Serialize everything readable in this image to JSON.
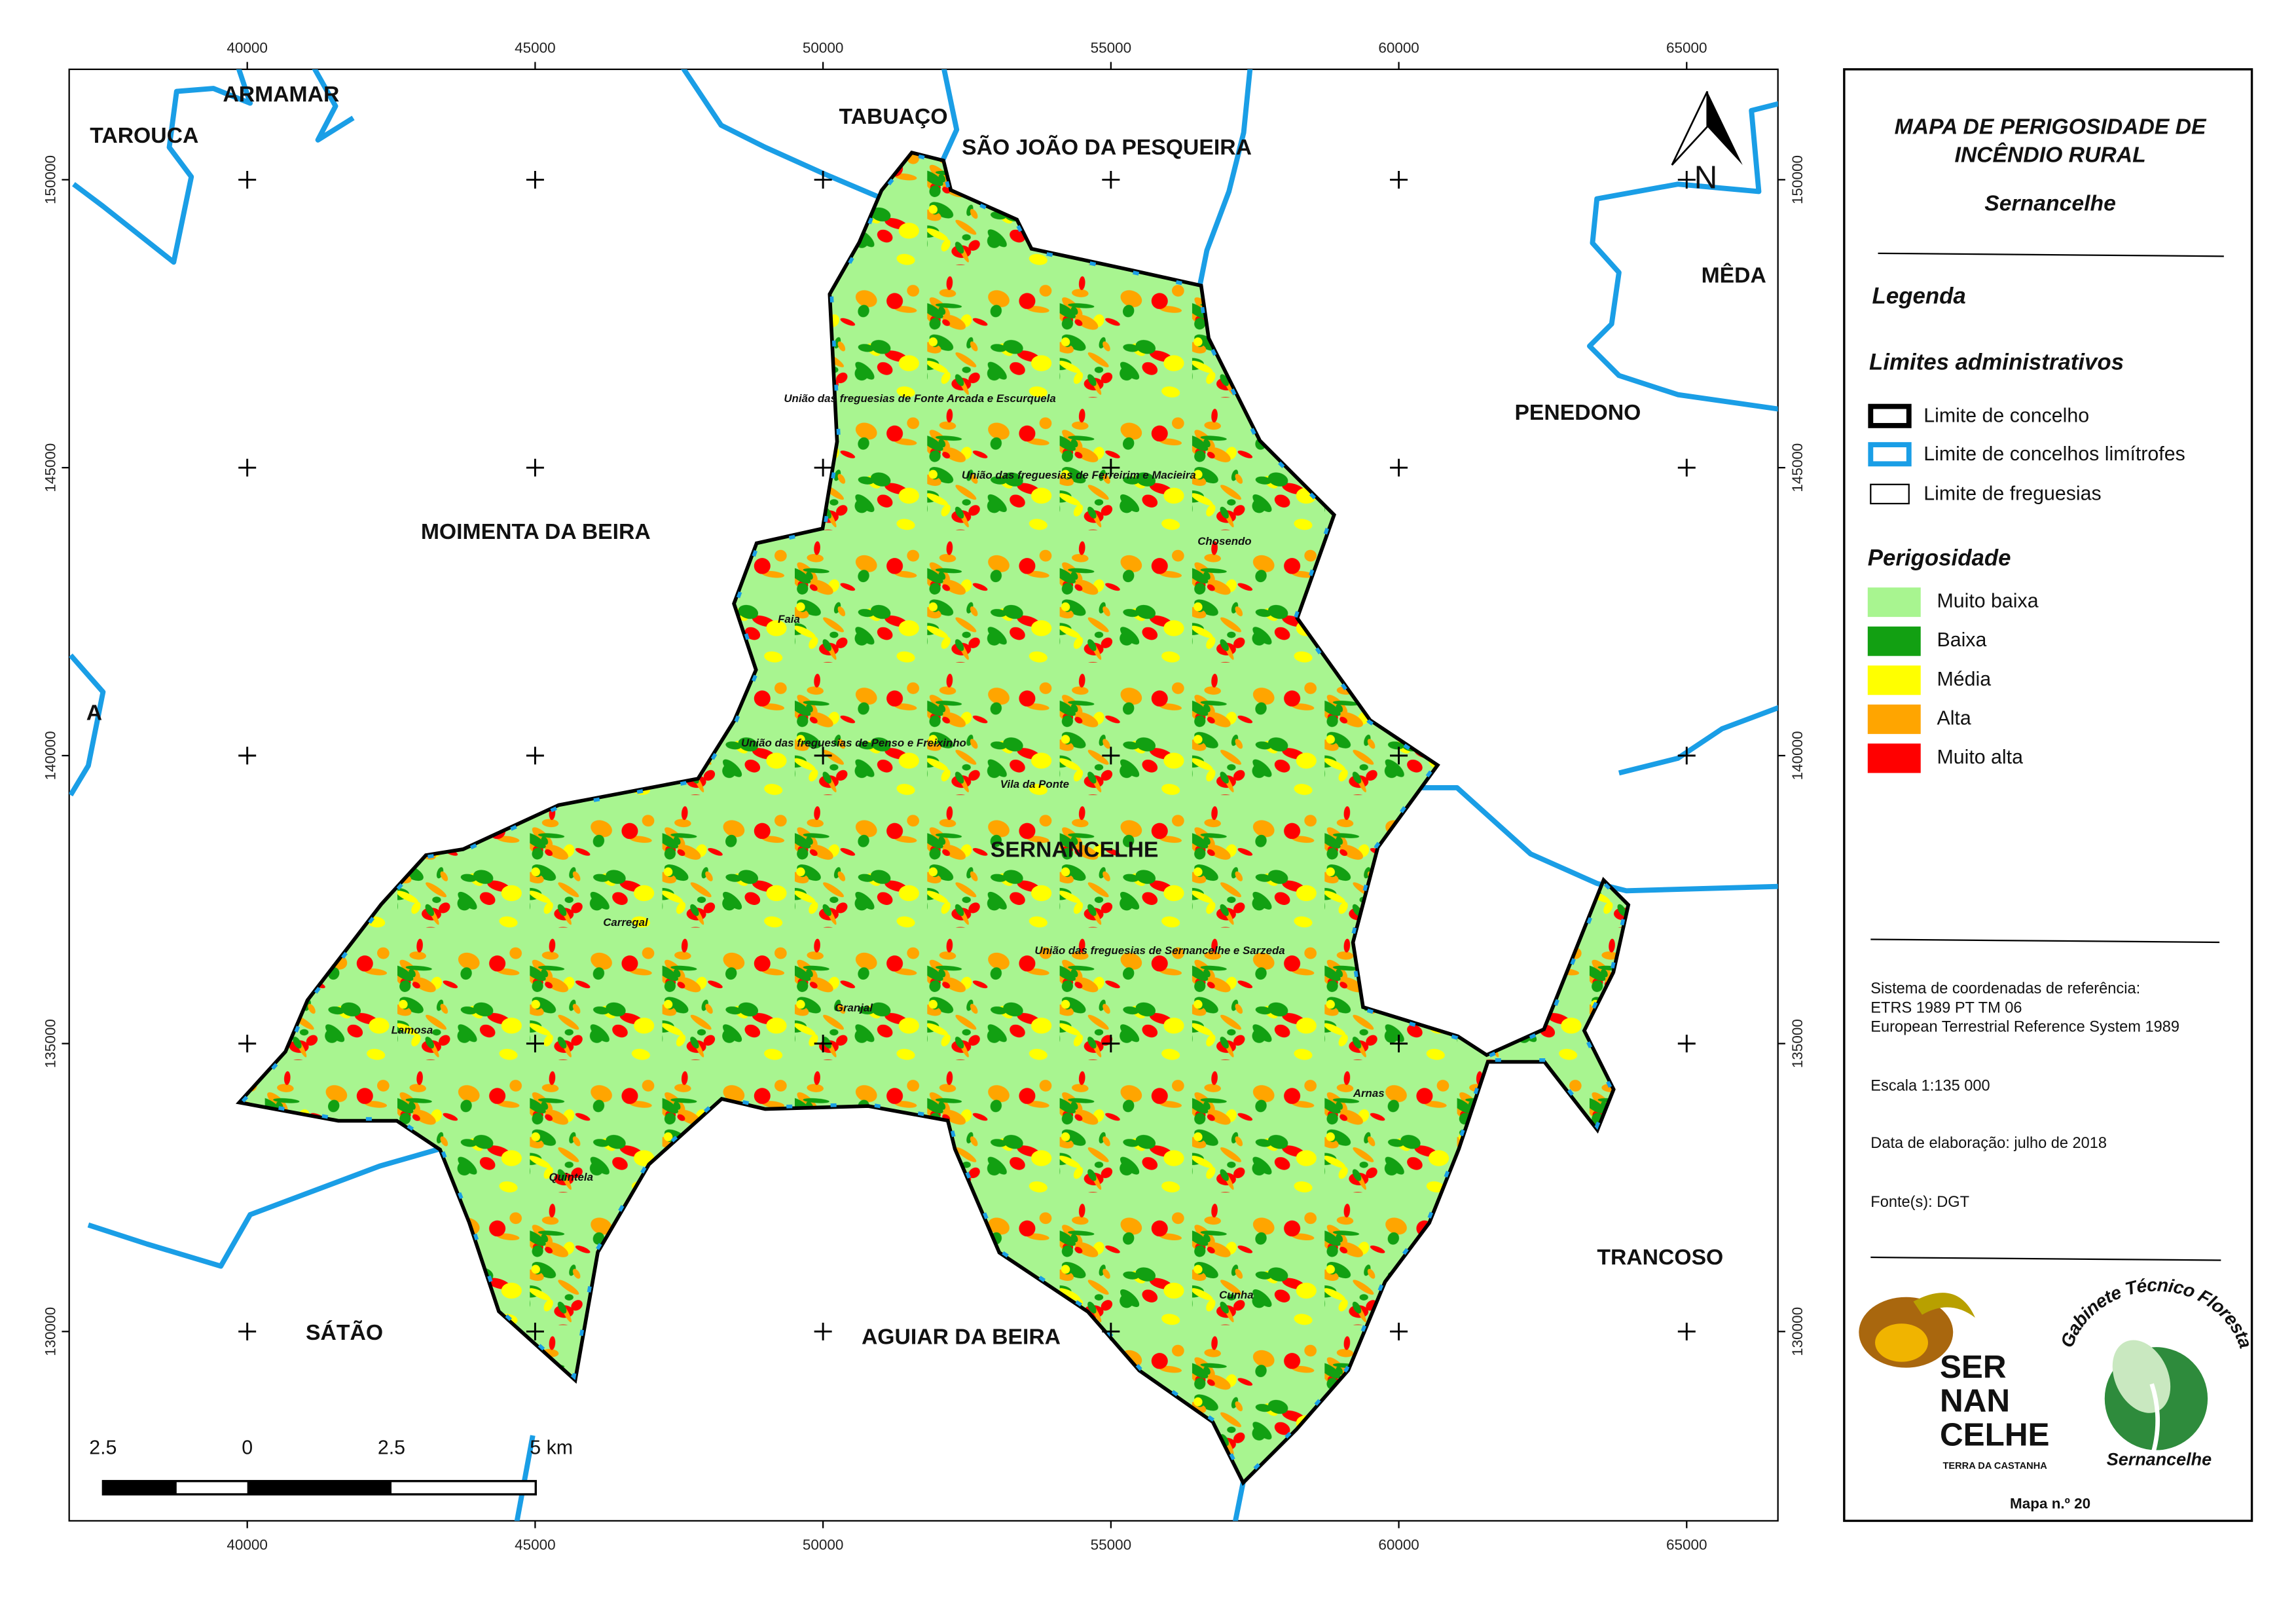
{
  "title_lines": [
    "MAPA DE PERIGOSIDADE DE",
    "INCÊNDIO RURAL"
  ],
  "subtitle": "Sernancelhe",
  "legend": {
    "title": "Legenda",
    "admin_heading": "Limites administrativos",
    "admin_items": [
      "Limite de concelho",
      "Limite de concelhos limítrofes",
      "Limite de freguesias"
    ],
    "hazard_heading": "Perigosidade",
    "hazard_classes": [
      {
        "label": "Muito baixa",
        "color": "#a8f590"
      },
      {
        "label": "Baixa",
        "color": "#12a012"
      },
      {
        "label": "Média",
        "color": "#ffff00"
      },
      {
        "label": "Alta",
        "color": "#ffa500"
      },
      {
        "label": "Muito alta",
        "color": "#ff0000"
      }
    ]
  },
  "info": [
    "Sistema de coordenadas de referência:",
    "ETRS 1989 PT TM 06",
    "European Terrestrial Reference System 1989"
  ],
  "scale": "Escala 1:135 000",
  "date": "Data de elaboração: julho de 2018",
  "source": "Fonte(s): DGT",
  "map_number": "Mapa n.º 20",
  "map": {
    "x_ticks": [
      40000,
      45000,
      50000,
      55000,
      60000,
      65000
    ],
    "y_ticks": [
      150000,
      145000,
      140000,
      135000,
      130000
    ],
    "north": "N",
    "scale_bar": [
      "2.5",
      "0",
      "2.5",
      "5 km"
    ],
    "municipality": "SERNANCELHE",
    "neighbors": [
      "TAROUCA",
      "ARMAMAR",
      "TABUAÇO",
      "SÃO JOÃO DA PESQUEIRA",
      "MÊDA",
      "PENEDONO",
      "MOIMENTA DA BEIRA",
      "SÁTÃO",
      "AGUIAR DA BEIRA",
      "TRANCOSO",
      "A"
    ],
    "parishes": [
      "União das freguesias de Fonte Arcada e Escurquela",
      "União das freguesias de Ferreirim e Macieira",
      "Chosendo",
      "Faia",
      "União das freguesias de Penso e Freixinho",
      "Vila da Ponte",
      "União das freguesias de Sernancelhe e Sarzeda",
      "Carregal",
      "Granjal",
      "Lamosa",
      "Arnas",
      "Quintela",
      "Cunha"
    ]
  },
  "logos": {
    "sernancelhe": [
      "SER",
      "NAN",
      "CELHE"
    ],
    "tagline": "TERRA DA CASTANHA",
    "gtf": "Gabinete Técnico Florestal",
    "gtf_place": "Sernancelhe"
  }
}
